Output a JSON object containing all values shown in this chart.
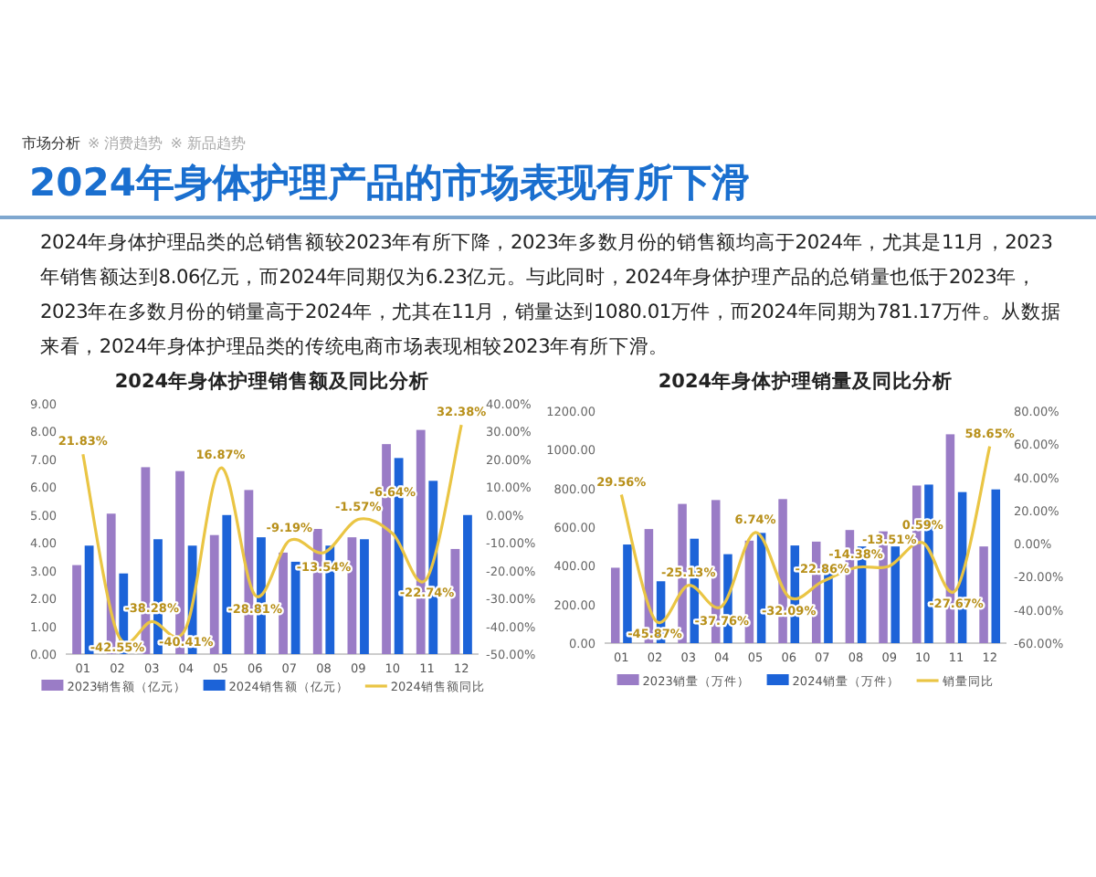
{
  "chart_data": [
    {
      "type": "other",
      "title": "2024年身体护理产品的市场表现有所下滑",
      "annotations": [
        "市场分析",
        "※ 消费趋势",
        "※ 新品趋势",
        "2024年身体护理品类的总销售额较2023年有所下降，2023年多数月份的销售额均高于2024年，尤其是11月，2023年销售额达到8.06亿元，而2024年同期仅为6.23亿元。与此同时，2024年身体护理产品的总销量也低于2023年，2023年在多数月份的销量高于2024年，尤其在11月，销量达到1080.01万件，而2024年同期为781.17万件。从数据来看，2024年身体护理品类的传统电商市场表现相较2023年有所下滑。"
      ]
    },
    {
      "type": "bar",
      "title": "2024年身体护理销售额及同比分析",
      "categories": [
        "01",
        "02",
        "03",
        "04",
        "05",
        "06",
        "07",
        "08",
        "09",
        "10",
        "11",
        "12"
      ],
      "series": [
        {
          "name": "2023销售额（亿元）",
          "color": "#9a7cc6",
          "values": [
            3.2,
            5.05,
            6.72,
            6.58,
            4.28,
            5.9,
            3.65,
            4.5,
            4.2,
            7.55,
            8.06,
            3.78
          ]
        },
        {
          "name": "2024销售额（亿元）",
          "color": "#1c63d8",
          "values": [
            3.9,
            2.9,
            4.13,
            3.9,
            5.0,
            4.2,
            3.32,
            3.9,
            4.13,
            7.05,
            6.23,
            5.0
          ]
        },
        {
          "name": "2024销售额同比",
          "type": "line",
          "axis": "y2",
          "color": "#eac544",
          "values": [
            21.83,
            -42.55,
            -38.28,
            -40.41,
            16.87,
            -28.81,
            -9.19,
            -13.54,
            -1.57,
            -6.64,
            -22.74,
            32.38
          ],
          "value_labels": [
            "21.83%",
            "-42.55%",
            "-38.28%",
            "-40.41%",
            "16.87%",
            "-28.81%",
            "-9.19%",
            "-13.54%",
            "-1.57%",
            "-6.64%",
            "-22.74%",
            "32.38%"
          ]
        }
      ],
      "ylim": [
        0,
        9
      ],
      "yticks": [
        {
          "value": 0,
          "label": "0.00"
        },
        {
          "value": 1,
          "label": "1.00"
        },
        {
          "value": 2,
          "label": "2.00"
        },
        {
          "value": 3,
          "label": "3.00"
        },
        {
          "value": 4,
          "label": "4.00"
        },
        {
          "value": 5,
          "label": "5.00"
        },
        {
          "value": 6,
          "label": "6.00"
        },
        {
          "value": 7,
          "label": "7.00"
        },
        {
          "value": 8,
          "label": "8.00"
        },
        {
          "value": 9,
          "label": "9.00"
        }
      ],
      "y2lim": [
        -50,
        40
      ],
      "y2ticks": [
        {
          "value": -50,
          "label": "-50.00%"
        },
        {
          "value": -40,
          "label": "-40.00%"
        },
        {
          "value": -30,
          "label": "-30.00%"
        },
        {
          "value": -20,
          "label": "-20.00%"
        },
        {
          "value": -10,
          "label": "-10.00%"
        },
        {
          "value": 0,
          "label": "0.00%"
        },
        {
          "value": 10,
          "label": "10.00%"
        },
        {
          "value": 20,
          "label": "20.00%"
        },
        {
          "value": 30,
          "label": "30.00%"
        },
        {
          "value": 40,
          "label": "40.00%"
        }
      ],
      "legend": "bottom",
      "marker": "none"
    },
    {
      "type": "bar",
      "title": "2024年身体护理销量及同比分析",
      "categories": [
        "01",
        "02",
        "03",
        "04",
        "05",
        "06",
        "07",
        "08",
        "09",
        "10",
        "11",
        "12"
      ],
      "series": [
        {
          "name": "2023销量（万件）",
          "color": "#9a7cc6",
          "values": [
            390,
            590,
            720,
            740,
            530,
            745,
            525,
            585,
            578,
            815,
            1080.01,
            500
          ]
        },
        {
          "name": "2024销量（万件）",
          "color": "#1c63d8",
          "values": [
            510,
            320,
            540,
            460,
            570,
            505,
            405,
            500,
            500,
            820,
            781.17,
            795
          ]
        },
        {
          "name": "销量同比",
          "type": "line",
          "axis": "y2",
          "color": "#eac544",
          "values": [
            29.56,
            -45.87,
            -25.13,
            -37.76,
            6.74,
            -32.09,
            -22.86,
            -14.38,
            -13.51,
            0.59,
            -27.67,
            58.65
          ],
          "value_labels": [
            "29.56%",
            "-45.87%",
            "-25.13%",
            "-37.76%",
            "6.74%",
            "-32.09%",
            "-22.86%",
            "-14.38%",
            "-13.51%",
            "0.59%",
            "-27.67%",
            "58.65%"
          ]
        }
      ],
      "ylim": [
        0,
        1200
      ],
      "yticks": [
        {
          "value": 0,
          "label": "0.00"
        },
        {
          "value": 200,
          "label": "200.00"
        },
        {
          "value": 400,
          "label": "400.00"
        },
        {
          "value": 600,
          "label": "600.00"
        },
        {
          "value": 800,
          "label": "800.00"
        },
        {
          "value": 1000,
          "label": "1000.00"
        },
        {
          "value": 1200,
          "label": "1200.00"
        }
      ],
      "y2lim": [
        -60,
        80
      ],
      "y2ticks": [
        {
          "value": -60,
          "label": "-60.00%"
        },
        {
          "value": -40,
          "label": "-40.00%"
        },
        {
          "value": -20,
          "label": "-20.00%"
        },
        {
          "value": 0,
          "label": "0.00%"
        },
        {
          "value": 20,
          "label": "20.00%"
        },
        {
          "value": 40,
          "label": "40.00%"
        },
        {
          "value": 60,
          "label": "60.00%"
        },
        {
          "value": 80,
          "label": "80.00%"
        }
      ],
      "legend": "bottom",
      "marker": "none"
    }
  ]
}
